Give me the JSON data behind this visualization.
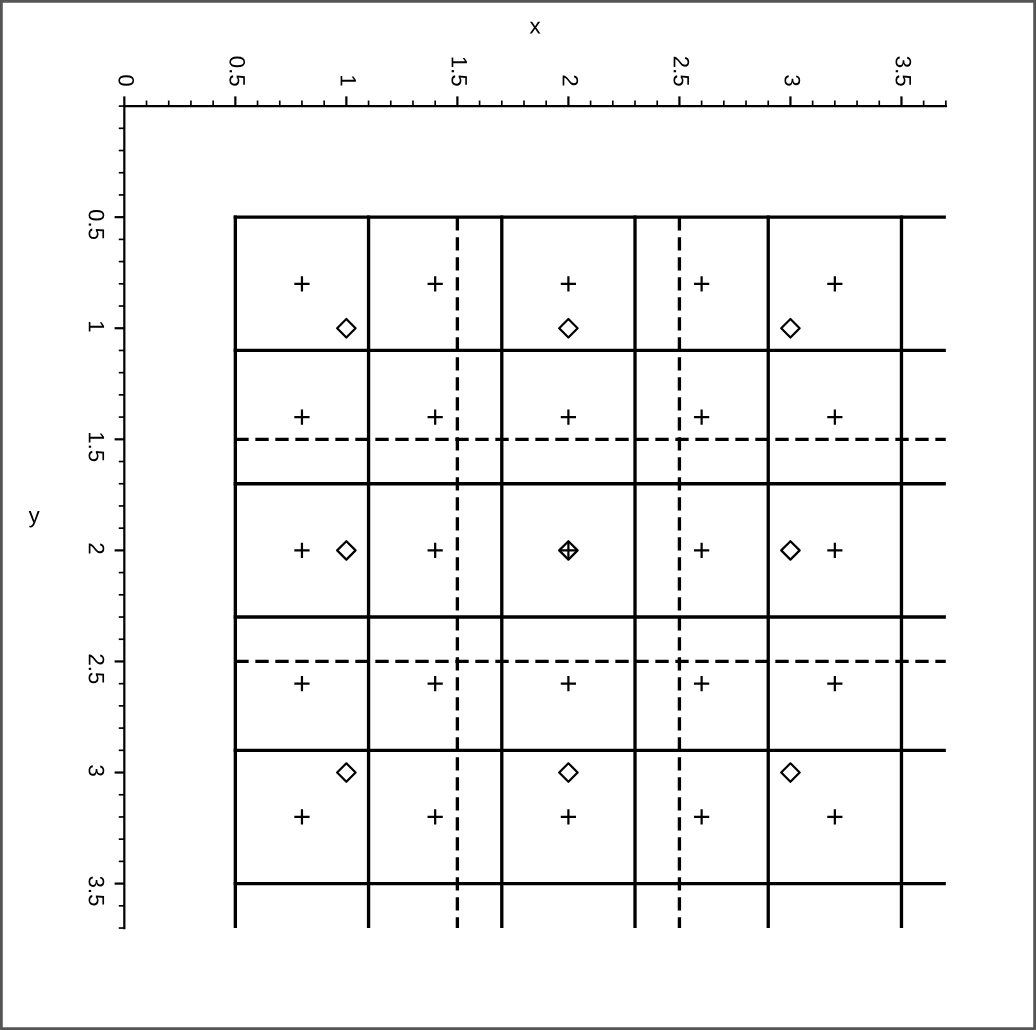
{
  "chart_data": {
    "type": "scatter",
    "xlabel": "x",
    "ylabel": "y",
    "xlim": [
      0,
      3.7
    ],
    "ylim": [
      3.7,
      0
    ],
    "xticks": [
      0,
      0.5,
      1,
      1.5,
      2,
      2.5,
      3,
      3.5
    ],
    "yticks": [
      0.5,
      1,
      1.5,
      2,
      2.5,
      3,
      3.5
    ],
    "grid": false,
    "legend": false,
    "series": [
      {
        "marker": "cross",
        "color": "#000000",
        "x": [
          0.8,
          1.4,
          2,
          2.6,
          3.2,
          0.8,
          1.4,
          2,
          2.6,
          3.2,
          0.8,
          1.4,
          2,
          2.6,
          3.2,
          0.8,
          1.4,
          2,
          2.6,
          3.2,
          0.8,
          1.4,
          2,
          2.6,
          3.2
        ],
        "values": [
          0.8,
          0.8,
          0.8,
          0.8,
          0.8,
          1.4,
          1.4,
          1.4,
          1.4,
          1.4,
          2,
          2,
          2,
          2,
          2,
          2.6,
          2.6,
          2.6,
          2.6,
          2.6,
          3.2,
          3.2,
          3.2,
          3.2,
          3.2
        ]
      },
      {
        "marker": "diamond",
        "color": "#000000",
        "x": [
          1,
          2,
          3,
          1,
          2,
          3,
          1,
          2,
          3
        ],
        "values": [
          1,
          1,
          1,
          2,
          2,
          2,
          3,
          3,
          3
        ]
      },
      {
        "type": "line",
        "line_style": "solid",
        "color": "#000000",
        "x": [
          0.5,
          0.5
        ],
        "values": [
          0.5,
          3.7
        ]
      },
      {
        "type": "line",
        "line_style": "solid",
        "color": "#000000",
        "x": [
          1.1,
          1.1
        ],
        "values": [
          0.5,
          3.7
        ]
      },
      {
        "type": "line",
        "line_style": "solid",
        "color": "#000000",
        "x": [
          1.7,
          1.7
        ],
        "values": [
          0.5,
          3.7
        ]
      },
      {
        "type": "line",
        "line_style": "solid",
        "color": "#000000",
        "x": [
          2.3,
          2.3
        ],
        "values": [
          0.5,
          3.7
        ]
      },
      {
        "type": "line",
        "line_style": "solid",
        "color": "#000000",
        "x": [
          2.9,
          2.9
        ],
        "values": [
          0.5,
          3.7
        ]
      },
      {
        "type": "line",
        "line_style": "solid",
        "color": "#000000",
        "x": [
          3.5,
          3.5
        ],
        "values": [
          0.5,
          3.7
        ]
      },
      {
        "type": "line",
        "line_style": "dashed",
        "color": "#000000",
        "x": [
          1.5,
          1.5
        ],
        "values": [
          0.5,
          3.7
        ]
      },
      {
        "type": "line",
        "line_style": "dashed",
        "color": "#000000",
        "x": [
          2.5,
          2.5
        ],
        "values": [
          0.5,
          3.7
        ]
      },
      {
        "type": "line",
        "line_style": "solid",
        "color": "#000000",
        "x": [
          0.5,
          3.7
        ],
        "values": [
          0.5,
          0.5
        ]
      },
      {
        "type": "line",
        "line_style": "solid",
        "color": "#000000",
        "x": [
          0.5,
          3.7
        ],
        "values": [
          1.1,
          1.1
        ]
      },
      {
        "type": "line",
        "line_style": "solid",
        "color": "#000000",
        "x": [
          0.5,
          3.7
        ],
        "values": [
          1.7,
          1.7
        ]
      },
      {
        "type": "line",
        "line_style": "solid",
        "color": "#000000",
        "x": [
          0.5,
          3.7
        ],
        "values": [
          2.3,
          2.3
        ]
      },
      {
        "type": "line",
        "line_style": "solid",
        "color": "#000000",
        "x": [
          0.5,
          3.7
        ],
        "values": [
          2.9,
          2.9
        ]
      },
      {
        "type": "line",
        "line_style": "solid",
        "color": "#000000",
        "x": [
          0.5,
          3.7
        ],
        "values": [
          3.5,
          3.5
        ]
      },
      {
        "type": "line",
        "line_style": "dashed",
        "color": "#000000",
        "x": [
          0.5,
          3.7
        ],
        "values": [
          1.5,
          1.5
        ]
      },
      {
        "type": "line",
        "line_style": "dashed",
        "color": "#000000",
        "x": [
          0.5,
          3.7
        ],
        "values": [
          2.5,
          2.5
        ]
      }
    ]
  }
}
